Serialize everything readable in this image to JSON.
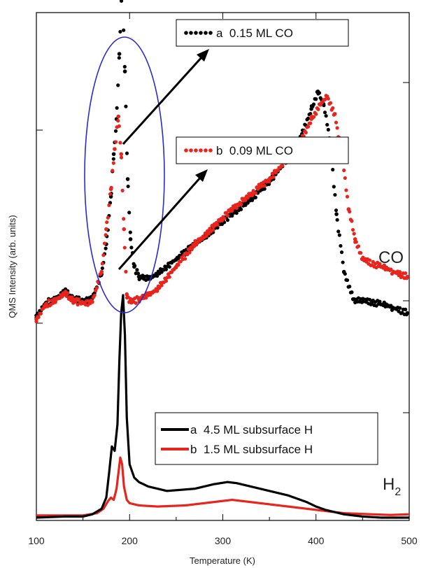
{
  "chart_data": {
    "type": "line",
    "title": "",
    "xlabel": "Temperature (K)",
    "ylabel": "QMS Intensity (arb. units)",
    "xlim": [
      100,
      500
    ],
    "x_ticks": [
      "100",
      "200",
      "300",
      "400",
      "500"
    ],
    "y_ticks_labeled": false,
    "grid": false,
    "curve_labels": {
      "co": "CO",
      "h2_main": "H",
      "h2_sub": "2"
    },
    "colors": {
      "a": "#000000",
      "b": "#e8241c",
      "ellipse": "#2a2ad0",
      "frame": "#000000"
    },
    "series": [
      {
        "id": "co_a",
        "group": "CO",
        "style": "dotted",
        "name": "a  0.15 ML CO",
        "color": "#000000",
        "x": [
          100,
          110,
          120,
          130,
          140,
          150,
          160,
          170,
          175,
          180,
          183,
          186,
          189,
          192,
          195,
          198,
          201,
          205,
          210,
          220,
          230,
          250,
          270,
          290,
          310,
          330,
          350,
          370,
          385,
          395,
          402,
          408,
          415,
          422,
          430,
          440,
          460,
          480,
          498
        ],
        "y": [
          0.075,
          0.125,
          0.14,
          0.175,
          0.14,
          0.135,
          0.145,
          0.24,
          0.36,
          0.55,
          0.72,
          0.86,
          1.12,
          1.4,
          1.05,
          0.62,
          0.38,
          0.27,
          0.23,
          0.225,
          0.24,
          0.3,
          0.36,
          0.42,
          0.48,
          0.54,
          0.61,
          0.7,
          0.8,
          0.9,
          0.97,
          0.92,
          0.78,
          0.48,
          0.25,
          0.14,
          0.13,
          0.11,
          0.085
        ]
      },
      {
        "id": "co_b",
        "group": "CO",
        "style": "dotted",
        "name": "b  0.09 ML CO",
        "color": "#e8241c",
        "x": [
          100,
          110,
          120,
          130,
          140,
          150,
          160,
          170,
          175,
          180,
          184,
          188,
          191,
          194,
          197,
          200,
          210,
          230,
          250,
          270,
          290,
          310,
          330,
          350,
          370,
          385,
          395,
          405,
          412,
          420,
          428,
          435,
          442,
          450,
          470,
          490,
          498
        ],
        "y": [
          0.06,
          0.12,
          0.135,
          0.165,
          0.135,
          0.125,
          0.13,
          0.25,
          0.42,
          0.58,
          0.74,
          0.87,
          0.72,
          0.42,
          0.16,
          0.13,
          0.14,
          0.18,
          0.27,
          0.36,
          0.43,
          0.5,
          0.56,
          0.62,
          0.7,
          0.78,
          0.86,
          0.92,
          0.95,
          0.88,
          0.72,
          0.5,
          0.38,
          0.3,
          0.27,
          0.24,
          0.23
        ]
      },
      {
        "id": "h2_a",
        "group": "H2",
        "style": "solid",
        "name": "a  4.5 ML subsurface H",
        "color": "#000000",
        "x": [
          100,
          130,
          150,
          160,
          170,
          175,
          178,
          181,
          184,
          187,
          189,
          191,
          193,
          195,
          197,
          200,
          205,
          210,
          220,
          240,
          270,
          290,
          305,
          315,
          330,
          350,
          370,
          390,
          400,
          410,
          430,
          450,
          470,
          500
        ],
        "y": [
          0.0,
          0.005,
          0.005,
          0.015,
          0.04,
          0.09,
          0.2,
          0.32,
          0.3,
          0.42,
          0.7,
          0.92,
          1.0,
          0.82,
          0.45,
          0.24,
          0.18,
          0.16,
          0.14,
          0.12,
          0.13,
          0.15,
          0.16,
          0.155,
          0.14,
          0.12,
          0.1,
          0.07,
          0.05,
          0.035,
          0.015,
          0.005,
          0.0,
          0.0
        ]
      },
      {
        "id": "h2_b",
        "group": "H2",
        "style": "solid",
        "name": "b  1.5 ML subsurface H",
        "color": "#e8241c",
        "x": [
          100,
          130,
          150,
          165,
          172,
          177,
          180,
          183,
          186,
          188,
          190,
          192,
          194,
          197,
          200,
          210,
          230,
          260,
          290,
          310,
          330,
          360,
          390,
          410,
          430,
          460,
          480,
          500
        ],
        "y": [
          0.01,
          0.01,
          0.01,
          0.02,
          0.04,
          0.075,
          0.09,
          0.08,
          0.13,
          0.2,
          0.27,
          0.24,
          0.14,
          0.08,
          0.065,
          0.055,
          0.05,
          0.055,
          0.07,
          0.08,
          0.07,
          0.055,
          0.04,
          0.03,
          0.02,
          0.015,
          0.012,
          0.015
        ]
      }
    ]
  }
}
